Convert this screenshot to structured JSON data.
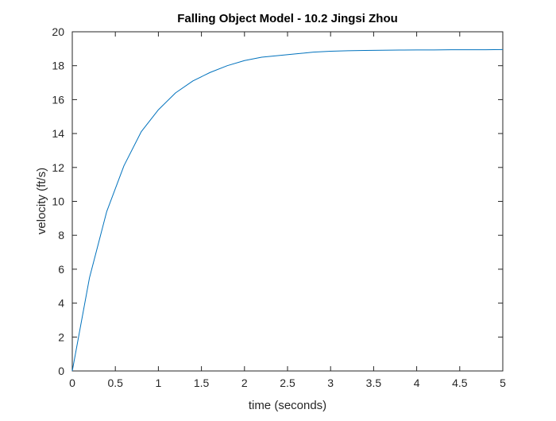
{
  "chart_data": {
    "type": "line",
    "title": "Falling Object Model - 10.2 Jingsi Zhou",
    "xlabel": "time (seconds)",
    "ylabel": "velocity (ft/s)",
    "xlim": [
      0,
      5
    ],
    "ylim": [
      0,
      20
    ],
    "xticks": [
      0,
      0.5,
      1,
      1.5,
      2,
      2.5,
      3,
      3.5,
      4,
      4.5,
      5
    ],
    "xtick_labels": [
      "0",
      "0.5",
      "1",
      "1.5",
      "2",
      "2.5",
      "3",
      "3.5",
      "4",
      "4.5",
      "5"
    ],
    "yticks": [
      0,
      2,
      4,
      6,
      8,
      10,
      12,
      14,
      16,
      18,
      20
    ],
    "ytick_labels": [
      "0",
      "2",
      "4",
      "6",
      "8",
      "10",
      "12",
      "14",
      "16",
      "18",
      "20"
    ],
    "grid": false,
    "series": [
      {
        "color": "#0072BD",
        "x": [
          0,
          0.2,
          0.4,
          0.6,
          0.8,
          1.0,
          1.2,
          1.4,
          1.6,
          1.8,
          2.0,
          2.2,
          2.4,
          2.6,
          2.8,
          3.0,
          3.2,
          3.4,
          3.6,
          3.8,
          4.0,
          4.2,
          4.4,
          4.6,
          4.8,
          5.0
        ],
        "y": [
          0,
          5.5,
          9.4,
          12.1,
          14.1,
          15.4,
          16.4,
          17.1,
          17.6,
          18.0,
          18.3,
          18.5,
          18.6,
          18.7,
          18.8,
          18.85,
          18.88,
          18.9,
          18.91,
          18.92,
          18.93,
          18.93,
          18.94,
          18.94,
          18.94,
          18.95
        ]
      }
    ]
  }
}
